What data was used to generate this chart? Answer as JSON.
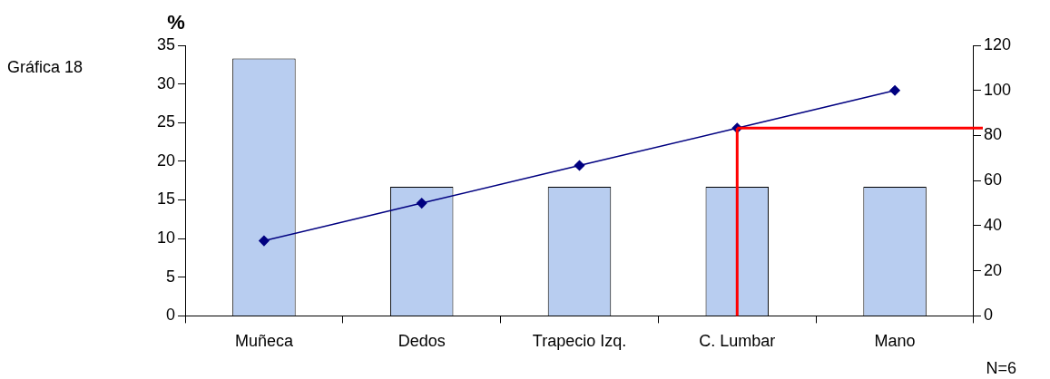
{
  "chart_data": {
    "type": "bar",
    "ylabel": "%",
    "categories": [
      "Muñeca",
      "Dedos",
      "Trapecio Izq.",
      "C. Lumbar",
      "Mano"
    ],
    "series": [
      {
        "color": "#b8cdf0",
        "values": [
          33.3,
          16.7,
          16.7,
          16.7,
          16.7
        ]
      },
      {
        "type": "line",
        "axis": "y2",
        "color": "#000080",
        "marker": "diamond",
        "values": [
          33.3,
          50,
          66.7,
          83.3,
          100
        ]
      }
    ],
    "ylim": [
      0,
      35
    ],
    "yticks": [
      0,
      5,
      10,
      15,
      20,
      25,
      30,
      35
    ],
    "y2lim": [
      0,
      120
    ],
    "y2ticks": [
      0,
      20,
      40,
      60,
      80,
      100,
      120
    ],
    "ref_lines": [
      {
        "axis": "y2",
        "value": 83.3,
        "color": "#ff0000"
      },
      {
        "axis": "x",
        "value": "C. Lumbar",
        "color": "#ff0000"
      }
    ],
    "annotations": [
      "Gráfica 18",
      "N=6"
    ],
    "grid": false,
    "legend": false
  }
}
